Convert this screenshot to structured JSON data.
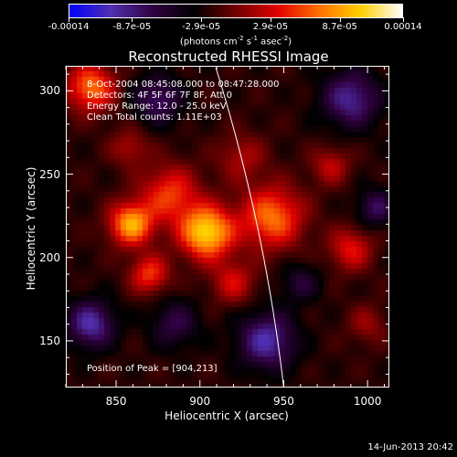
{
  "colorbar": {
    "tick_labels": [
      "-0.00014",
      "-8.7e-05",
      "-2.9e-05",
      "2.9e-05",
      "8.7e-05",
      "0.00014"
    ],
    "tick_values": [
      -0.00014,
      -8.7e-05,
      -2.9e-05,
      2.9e-05,
      8.7e-05,
      0.00014
    ],
    "units_prefix": "(photons cm",
    "units_exp1": "-2",
    "units_mid": " s",
    "units_exp2": "-1",
    "units_mid2": " asec",
    "units_exp3": "-2",
    "units_suffix": ")",
    "colors": [
      "#0000ff",
      "#5030b0",
      "#300040",
      "#000000",
      "#700000",
      "#e00000",
      "#ff7000",
      "#ffd000",
      "#ffffff"
    ]
  },
  "chart_data": {
    "type": "heatmap",
    "title": "Reconstructed RHESSI Image",
    "xlabel": "Heliocentric X (arcsec)",
    "ylabel": "Heliocentric Y (arcsec)",
    "xlim": [
      820,
      1013
    ],
    "ylim": [
      122,
      315
    ],
    "xticks": [
      850,
      900,
      950,
      1000
    ],
    "yticks": [
      150,
      200,
      250,
      300
    ],
    "xtick_labels": [
      "850",
      "900",
      "950",
      "1000"
    ],
    "ytick_labels": [
      "150",
      "200",
      "250",
      "300"
    ],
    "peak_x": 904,
    "peak_y": 213,
    "sources": [
      {
        "x": 904,
        "y": 215,
        "amp": 1.0,
        "sigma": 11
      },
      {
        "x": 859,
        "y": 220,
        "amp": 0.85,
        "sigma": 9
      },
      {
        "x": 943,
        "y": 224,
        "amp": 0.7,
        "sigma": 13
      },
      {
        "x": 882,
        "y": 238,
        "amp": 0.55,
        "sigma": 12
      },
      {
        "x": 870,
        "y": 190,
        "amp": 0.55,
        "sigma": 8
      },
      {
        "x": 835,
        "y": 302,
        "amp": 0.7,
        "sigma": 10
      },
      {
        "x": 990,
        "y": 205,
        "amp": 0.45,
        "sigma": 9
      },
      {
        "x": 978,
        "y": 255,
        "amp": 0.35,
        "sigma": 8
      },
      {
        "x": 925,
        "y": 260,
        "amp": 0.3,
        "sigma": 10
      },
      {
        "x": 858,
        "y": 266,
        "amp": 0.3,
        "sigma": 8
      },
      {
        "x": 920,
        "y": 185,
        "amp": 0.4,
        "sigma": 9
      },
      {
        "x": 1000,
        "y": 160,
        "amp": 0.25,
        "sigma": 8
      },
      {
        "x": 835,
        "y": 160,
        "amp": -0.6,
        "sigma": 10
      },
      {
        "x": 940,
        "y": 150,
        "amp": -0.6,
        "sigma": 12
      },
      {
        "x": 875,
        "y": 295,
        "amp": -0.45,
        "sigma": 10
      },
      {
        "x": 990,
        "y": 295,
        "amp": -0.55,
        "sigma": 12
      },
      {
        "x": 1005,
        "y": 230,
        "amp": -0.4,
        "sigma": 8
      },
      {
        "x": 885,
        "y": 160,
        "amp": -0.35,
        "sigma": 10
      },
      {
        "x": 960,
        "y": 185,
        "amp": -0.3,
        "sigma": 8
      }
    ]
  },
  "annotations": {
    "time_range": "8-Oct-2004 08:45:08.000 to 08:47:28.000",
    "detectors": "Detectors: 4F 5F 6F 7F 8F, Att 0",
    "energy_range": "Energy Range: 12.0 - 25.0 keV",
    "method_counts": "Clean     Total counts: 1.11E+03",
    "peak_position": "Position of Peak = [904,213]"
  },
  "footer": {
    "date": "14-Jun-2013 20:42"
  }
}
